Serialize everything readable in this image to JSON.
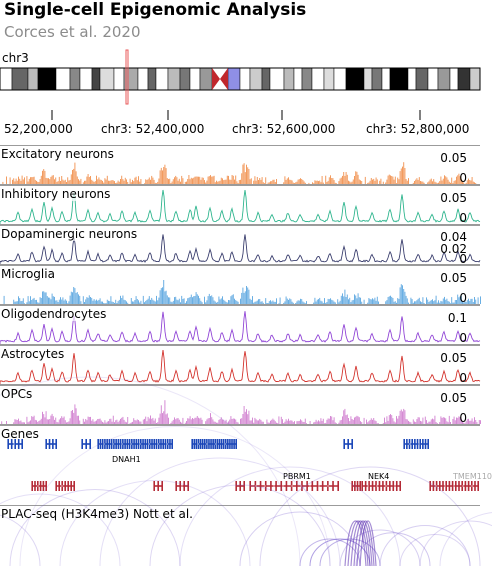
{
  "header": {
    "title": "Single-cell Epigenomic Analysis",
    "subtitle": "Corces et al. 2020"
  },
  "ideogram": {
    "chromosome": "chr3"
  },
  "axis": {
    "ticks": [
      {
        "label": "52,200,000"
      },
      {
        "label": "chr3: 52,400,000"
      },
      {
        "label": "chr3: 52,600,000"
      },
      {
        "label": "chr3: 52,800,000"
      }
    ]
  },
  "tracks": [
    {
      "key": "excitatory",
      "label": "Excitatory neurons",
      "color": "#f29b5f",
      "type": "bar",
      "yticks": [
        "0.05",
        "0"
      ],
      "ymax": 0.07
    },
    {
      "key": "inhibitory",
      "label": "Inhibitory neurons",
      "color": "#2fb58e",
      "type": "line",
      "yticks": [
        "0.05",
        "0"
      ],
      "ymax": 0.07
    },
    {
      "key": "dopaminergic",
      "label": "Dopaminergic neurons",
      "color": "#3b3f6e",
      "type": "line",
      "yticks": [
        "0.04",
        "0.02",
        "0"
      ],
      "ymax": 0.05
    },
    {
      "key": "microglia",
      "label": "Microglia",
      "color": "#6aafe3",
      "type": "bar",
      "yticks": [
        "0.05",
        "0"
      ],
      "ymax": 0.07
    },
    {
      "key": "oligodendrocytes",
      "label": "Oligodendrocytes",
      "color": "#9146d6",
      "type": "line",
      "yticks": [
        "0.1",
        "0"
      ],
      "ymax": 0.13
    },
    {
      "key": "astrocytes",
      "label": "Astrocytes",
      "color": "#d3332d",
      "type": "line",
      "yticks": [
        "0.05",
        "0"
      ],
      "ymax": 0.07
    },
    {
      "key": "opcs",
      "label": "OPCs",
      "color": "#d58bd4",
      "type": "bar",
      "yticks": [
        "0.05",
        "0"
      ],
      "ymax": 0.07
    }
  ],
  "genes": {
    "label": "Genes",
    "plus_color": "#1a46b8",
    "minus_color": "#b42a36",
    "names": [
      {
        "name": "DNAH1",
        "strand": "plus"
      },
      {
        "name": "PBRM1",
        "strand": "minus"
      },
      {
        "name": "NEK4",
        "strand": "minus"
      },
      {
        "name": "TMEM110",
        "strand": "minus"
      }
    ]
  },
  "plac": {
    "label": "PLAC-seq (H3K4me3) Nott et al.",
    "color": "#7a5fd0"
  }
}
